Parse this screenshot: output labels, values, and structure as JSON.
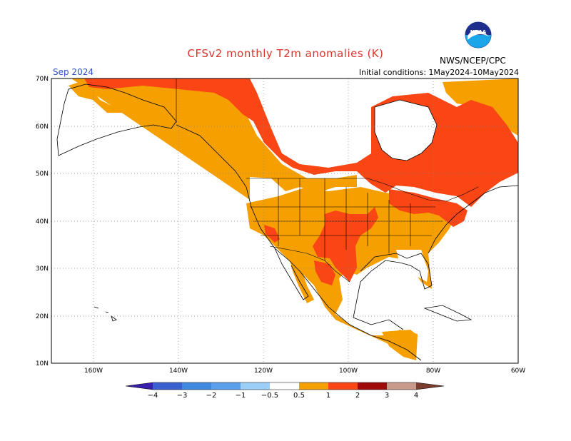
{
  "header": {
    "title": "CFSv2 monthly T2m anomalies (K)",
    "month": "Sep 2024",
    "initial_conditions": "Initial conditions:  1May2024-10May2024",
    "agency": "NWS/NCEP/CPC",
    "logo_text": "NOAA"
  },
  "map": {
    "projection": "equirectangular",
    "lon_range": [
      -170,
      -60
    ],
    "lat_range": [
      10,
      70
    ],
    "lat_ticks": [
      "10N",
      "20N",
      "30N",
      "40N",
      "50N",
      "60N",
      "70N"
    ],
    "lon_ticks": [
      "160W",
      "140W",
      "120W",
      "100W",
      "80W",
      "60W"
    ],
    "grid": "dotted",
    "anomaly_regions": [
      {
        "category": "0.5 to 1",
        "color": "#f5a000",
        "area": "western and central US, Mexico, southern Canada, Central America"
      },
      {
        "category": "1 to 2",
        "color": "#fa4614",
        "area": "northern Canada, Great Lakes, Northeast US, southern Plains, northern Mexico"
      }
    ]
  },
  "colorbar": {
    "labels": [
      "−4",
      "−3",
      "−2",
      "−1",
      "−0.5",
      "0.5",
      "1",
      "2",
      "3",
      "4"
    ],
    "colors": [
      "#3a1fa8",
      "#3a5fd0",
      "#3f8ae0",
      "#6aacf0",
      "#9ccff8",
      "#ffffff",
      "#f5a000",
      "#fa4614",
      "#a00a0a",
      "#c89a8c",
      "#7a3d2e"
    ]
  }
}
